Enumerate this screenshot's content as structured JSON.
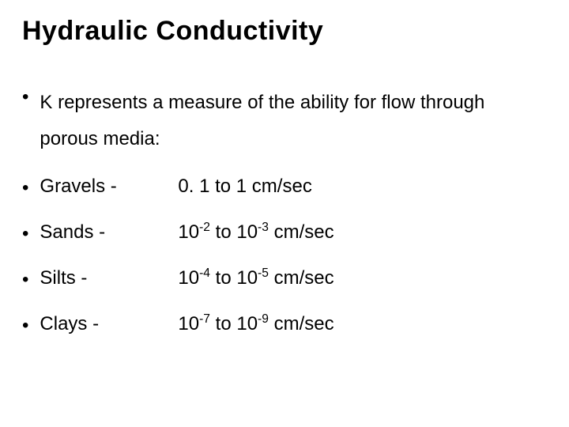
{
  "title": "Hydraulic Conductivity",
  "intro": "K represents a measure of the ability for flow through porous media:",
  "items": [
    {
      "label": "Gravels -",
      "value_plain": "0. 1 to 1 cm/sec",
      "type": "plain"
    },
    {
      "label": "Sands -",
      "exp1": "-2",
      "exp2": "-3",
      "type": "exp",
      "sep": " to "
    },
    {
      "label": "Silts -",
      "exp1": "-4",
      "exp2": "-5",
      "type": "exp",
      "sep": "  to "
    },
    {
      "label": "Clays -",
      "exp1": "-7",
      "exp2": "-9",
      "type": "exp",
      "sep": " to "
    }
  ],
  "units": " cm/sec",
  "base": "10",
  "bullet_glyph": "•",
  "colors": {
    "background": "#ffffff",
    "text": "#000000"
  },
  "typography": {
    "title_fontsize": 34,
    "body_fontsize": 24,
    "title_weight": "bold",
    "body_weight": "normal"
  }
}
